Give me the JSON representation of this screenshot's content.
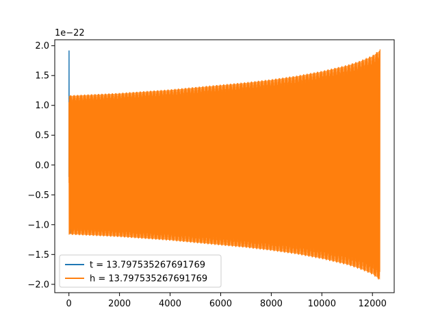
{
  "chart_data": {
    "type": "line",
    "title": "",
    "xlabel": "",
    "ylabel": "",
    "y_scale_label": "1e−22",
    "xlim": [
      -560,
      12860
    ],
    "ylim": [
      -2.14,
      2.1
    ],
    "x_ticks": [
      0,
      2000,
      4000,
      6000,
      8000,
      10000,
      12000
    ],
    "x_tick_labels": [
      "0",
      "2000",
      "4000",
      "6000",
      "8000",
      "10000",
      "12000"
    ],
    "y_ticks": [
      2.0,
      1.5,
      1.0,
      0.5,
      0.0,
      -0.5,
      -1.0,
      -1.5,
      -2.0
    ],
    "y_tick_labels": [
      "2.0",
      "1.5",
      "1.0",
      "0.5",
      "0.0",
      "−0.5",
      "−1.0",
      "−1.5",
      "−2.0"
    ],
    "grid": false,
    "legend_position": "lower-left",
    "series": [
      {
        "name": "t = 13.797535267691769",
        "color": "#1f77b4",
        "points": [
          [
            0,
            -0.2
          ],
          [
            5,
            1.92
          ],
          [
            10,
            -0.1
          ],
          [
            20,
            0.8
          ],
          [
            30,
            -1.1
          ],
          [
            45,
            1.1
          ],
          [
            60,
            -1.15
          ]
        ]
      },
      {
        "name": "h = 13.797535267691769",
        "color": "#ff7f0e",
        "envelope": {
          "x": [
            0,
            1000,
            2000,
            3000,
            4000,
            5000,
            6000,
            7000,
            8000,
            9000,
            10000,
            11000,
            11500,
            12000,
            12300
          ],
          "upper": [
            1.17,
            1.19,
            1.21,
            1.24,
            1.27,
            1.31,
            1.35,
            1.39,
            1.44,
            1.5,
            1.58,
            1.68,
            1.75,
            1.84,
            1.94
          ],
          "lower": [
            -1.17,
            -1.19,
            -1.21,
            -1.24,
            -1.27,
            -1.31,
            -1.35,
            -1.39,
            -1.44,
            -1.5,
            -1.58,
            -1.68,
            -1.75,
            -1.84,
            -1.94
          ]
        },
        "x_start": 0,
        "x_end": 12300
      }
    ]
  }
}
